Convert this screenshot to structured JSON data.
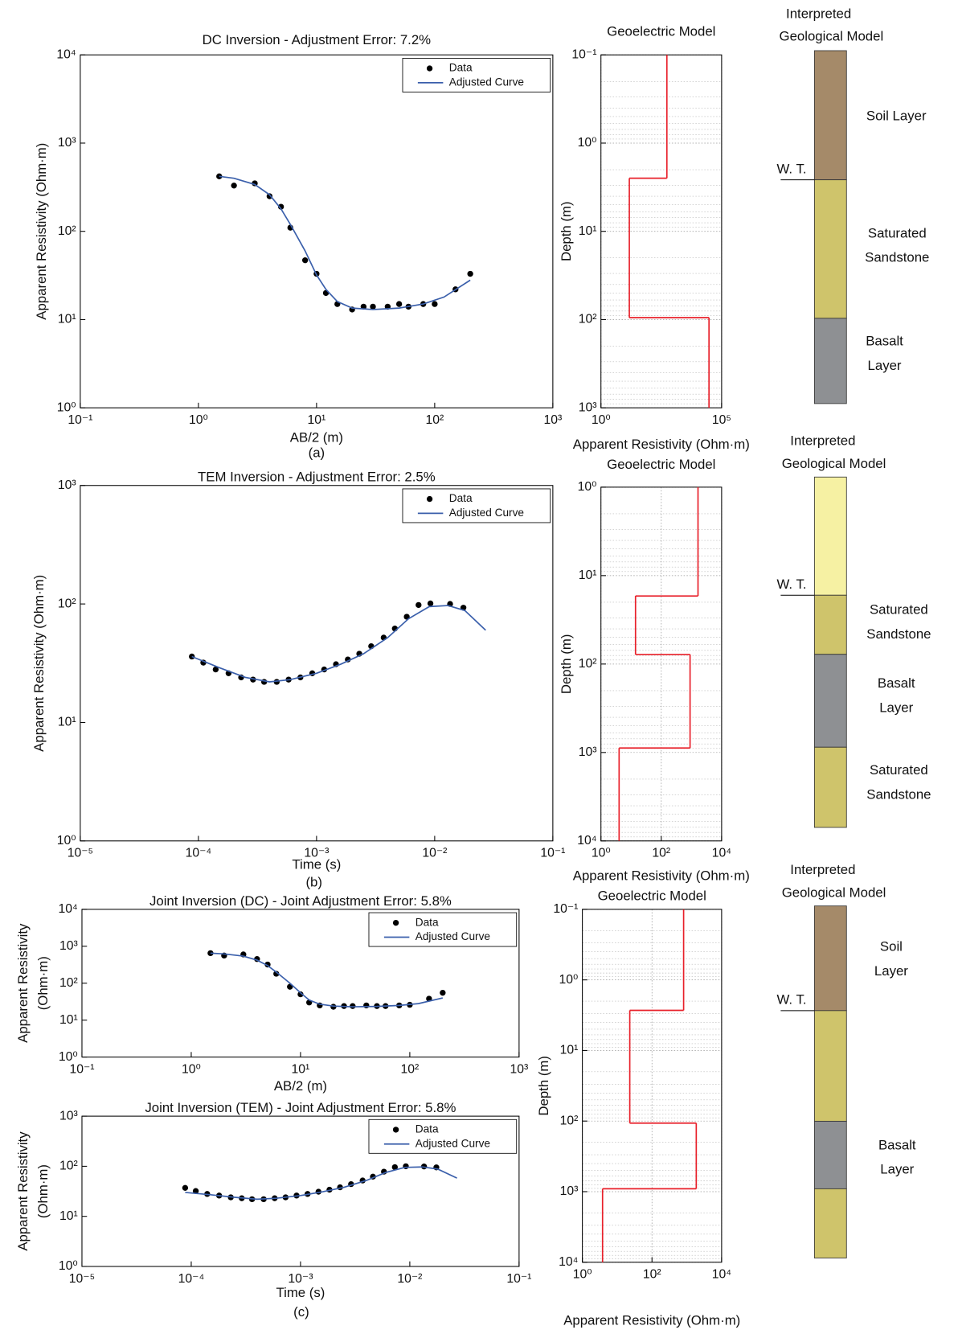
{
  "chart_data": [
    {
      "type": "line",
      "title": "DC Inversion - Adjustment Error: 7.2%",
      "xlabel": "AB/2 (m)",
      "ylabel": "Apparent Resistivity (Ohm·m)",
      "xlog": true,
      "ylog": true,
      "xlim": [
        0.1,
        1000
      ],
      "ylim": [
        1,
        10000
      ],
      "legend": "upper right",
      "xticks": [
        {
          "value": 0.1,
          "label": "10⁻¹"
        },
        {
          "value": 1,
          "label": "10⁰"
        },
        {
          "value": 10,
          "label": "10¹"
        },
        {
          "value": 100,
          "label": "10²"
        },
        {
          "value": 1000,
          "label": "10³"
        }
      ],
      "yticks": [
        {
          "value": 1,
          "label": "10⁰"
        },
        {
          "value": 10,
          "label": "10¹"
        },
        {
          "value": 100,
          "label": "10²"
        },
        {
          "value": 1000,
          "label": "10³"
        },
        {
          "value": 10000,
          "label": "10⁴"
        }
      ],
      "series": [
        {
          "name": "Data",
          "mode": "markers",
          "color": "#000000",
          "x": [
            1.5,
            2,
            3,
            4,
            5,
            6,
            8,
            10,
            12,
            15,
            20,
            25,
            30,
            40,
            50,
            60,
            80,
            100,
            150,
            200
          ],
          "values": [
            420,
            330,
            350,
            250,
            190,
            110,
            47,
            33,
            20,
            15,
            13,
            14,
            14,
            14,
            15,
            14,
            15,
            15,
            22,
            33
          ]
        },
        {
          "name": "Adjusted Curve",
          "mode": "line",
          "color": "#3a5fab",
          "x": [
            1.5,
            2,
            3,
            4,
            5,
            6,
            8,
            10,
            12,
            15,
            20,
            30,
            50,
            80,
            120,
            200
          ],
          "values": [
            420,
            400,
            340,
            260,
            180,
            120,
            60,
            32,
            22,
            16,
            13.5,
            13,
            13.5,
            15,
            18,
            28
          ]
        }
      ]
    },
    {
      "type": "step",
      "title": "Geoelectric Model",
      "xlabel": "Apparent Resistivity (Ohm·m)",
      "ylabel": "Depth (m)",
      "xlog": true,
      "ylog": true,
      "yinvert": true,
      "grid": true,
      "color": "#e8202a",
      "xlim": [
        1,
        100000
      ],
      "ylim": [
        0.1,
        1000
      ],
      "xticks": [
        {
          "value": 1,
          "label": "10⁰"
        },
        {
          "value": 100000,
          "label": "10⁵"
        }
      ],
      "yticks": [
        {
          "value": 0.1,
          "label": "10⁻¹"
        },
        {
          "value": 1,
          "label": "10⁰"
        },
        {
          "value": 10,
          "label": "10¹"
        },
        {
          "value": 100,
          "label": "10²"
        },
        {
          "value": 1000,
          "label": "10³"
        }
      ],
      "resistivity": [
        540,
        15,
        30000
      ],
      "depths": [
        2.5,
        95
      ]
    },
    {
      "type": "line",
      "title": "TEM Inversion - Adjustment Error: 2.5%",
      "xlabel": "Time (s)",
      "ylabel": "Apparent Resistivity (Ohm·m)",
      "xlog": true,
      "ylog": true,
      "xlim": [
        1e-05,
        0.1
      ],
      "ylim": [
        1,
        1000
      ],
      "legend": "upper right",
      "xticks": [
        {
          "value": 1e-05,
          "label": "10⁻⁵"
        },
        {
          "value": 0.0001,
          "label": "10⁻⁴"
        },
        {
          "value": 0.001,
          "label": "10⁻³"
        },
        {
          "value": 0.01,
          "label": "10⁻²"
        },
        {
          "value": 0.1,
          "label": "10⁻¹"
        }
      ],
      "yticks": [
        {
          "value": 1,
          "label": "10⁰"
        },
        {
          "value": 10,
          "label": "10¹"
        },
        {
          "value": 100,
          "label": "10²"
        },
        {
          "value": 1000,
          "label": "10³"
        }
      ],
      "series": [
        {
          "name": "Data",
          "mode": "markers",
          "color": "#000000",
          "x": [
            8.8e-05,
            0.00011,
            0.00014,
            0.00018,
            0.00023,
            0.00029,
            0.00036,
            0.00046,
            0.00058,
            0.00073,
            0.00092,
            0.00116,
            0.00146,
            0.00184,
            0.0023,
            0.0029,
            0.0037,
            0.0046,
            0.0058,
            0.0073,
            0.0092,
            0.0135,
            0.0175
          ],
          "values": [
            36,
            32,
            28,
            26,
            24,
            23,
            22,
            22,
            23,
            24,
            26,
            28,
            31,
            34,
            38,
            44,
            52,
            62,
            78,
            98,
            101,
            100,
            93
          ]
        },
        {
          "name": "Adjusted Curve",
          "mode": "line",
          "color": "#3a5fab",
          "x": [
            8.8e-05,
            0.00015,
            0.00025,
            0.0004,
            0.0006,
            0.001,
            0.0016,
            0.0025,
            0.004,
            0.006,
            0.009,
            0.013,
            0.018,
            0.027
          ],
          "values": [
            36,
            29,
            24,
            22,
            23,
            26,
            31,
            38,
            52,
            75,
            95,
            97,
            88,
            60
          ]
        }
      ]
    },
    {
      "type": "step",
      "title": "Geoelectric Model",
      "xlabel": "Apparent Resistivity (Ohm·m)",
      "ylabel": "Depth (m)",
      "xlog": true,
      "ylog": true,
      "yinvert": true,
      "grid": true,
      "color": "#e8202a",
      "xlim": [
        1,
        10000
      ],
      "ylim": [
        1,
        10000
      ],
      "xticks": [
        {
          "value": 1,
          "label": "10⁰"
        },
        {
          "value": 100,
          "label": "10²"
        },
        {
          "value": 10000,
          "label": "10⁴"
        }
      ],
      "yticks": [
        {
          "value": 1,
          "label": "10⁰"
        },
        {
          "value": 10,
          "label": "10¹"
        },
        {
          "value": 100,
          "label": "10²"
        },
        {
          "value": 1000,
          "label": "10³"
        },
        {
          "value": 10000,
          "label": "10⁴"
        }
      ],
      "resistivity": [
        1650,
        14,
        900,
        4
      ],
      "depths": [
        17,
        78,
        890
      ]
    },
    {
      "type": "line",
      "title": "Joint Inversion (DC) - Joint Adjustment Error: 5.8%",
      "xlabel": "AB/2 (m)",
      "ylabel_lines": [
        "Apparent Resistivity",
        "(Ohm·m)"
      ],
      "xlog": true,
      "ylog": true,
      "xlim": [
        0.1,
        1000
      ],
      "ylim": [
        1,
        10000
      ],
      "legend": "upper right",
      "xticks": [
        {
          "value": 0.1,
          "label": "10⁻¹"
        },
        {
          "value": 1,
          "label": "10⁰"
        },
        {
          "value": 10,
          "label": "10¹"
        },
        {
          "value": 100,
          "label": "10²"
        },
        {
          "value": 1000,
          "label": "10³"
        }
      ],
      "yticks": [
        {
          "value": 1,
          "label": "10⁰"
        },
        {
          "value": 10,
          "label": "10¹"
        },
        {
          "value": 100,
          "label": "10²"
        },
        {
          "value": 1000,
          "label": "10³"
        },
        {
          "value": 10000,
          "label": "10⁴"
        }
      ],
      "series": [
        {
          "name": "Data",
          "mode": "markers",
          "color": "#000000",
          "x": [
            1.5,
            2,
            3,
            4,
            5,
            6,
            8,
            10,
            12,
            15,
            20,
            25,
            30,
            40,
            50,
            60,
            80,
            100,
            150,
            200
          ],
          "values": [
            650,
            560,
            600,
            450,
            320,
            180,
            80,
            50,
            30,
            25,
            23,
            24,
            24,
            25,
            24,
            24,
            25,
            26,
            38,
            55
          ]
        },
        {
          "name": "Adjusted Curve",
          "mode": "line",
          "color": "#3a5fab",
          "x": [
            1.5,
            2,
            3,
            4,
            5,
            6,
            8,
            10,
            12,
            15,
            20,
            30,
            50,
            80,
            120,
            200
          ],
          "values": [
            650,
            620,
            540,
            420,
            300,
            200,
            100,
            55,
            35,
            27,
            24,
            23,
            23.5,
            25,
            28,
            40
          ]
        }
      ]
    },
    {
      "type": "line",
      "title": "Joint Inversion (TEM) - Joint Adjustment Error: 5.8%",
      "xlabel": "Time (s)",
      "ylabel_lines": [
        "Apparent Resistivity",
        "(Ohm·m)"
      ],
      "xlog": true,
      "ylog": true,
      "xlim": [
        1e-05,
        0.1
      ],
      "ylim": [
        1,
        1000
      ],
      "legend": "upper right",
      "xticks": [
        {
          "value": 1e-05,
          "label": "10⁻⁵"
        },
        {
          "value": 0.0001,
          "label": "10⁻⁴"
        },
        {
          "value": 0.001,
          "label": "10⁻³"
        },
        {
          "value": 0.01,
          "label": "10⁻²"
        },
        {
          "value": 0.1,
          "label": "10⁻¹"
        }
      ],
      "yticks": [
        {
          "value": 1,
          "label": "10⁰"
        },
        {
          "value": 10,
          "label": "10¹"
        },
        {
          "value": 100,
          "label": "10²"
        },
        {
          "value": 1000,
          "label": "10³"
        }
      ],
      "series": [
        {
          "name": "Data",
          "mode": "markers",
          "color": "#000000",
          "x": [
            8.8e-05,
            0.00011,
            0.00014,
            0.00018,
            0.00023,
            0.00029,
            0.00036,
            0.00046,
            0.00058,
            0.00073,
            0.00092,
            0.00116,
            0.00146,
            0.00184,
            0.0023,
            0.0029,
            0.0037,
            0.0046,
            0.0058,
            0.0073,
            0.0092,
            0.0135,
            0.0175
          ],
          "values": [
            37,
            32,
            28,
            26,
            24,
            23,
            22,
            22,
            23,
            24,
            26,
            28,
            31,
            34,
            38,
            44,
            52,
            62,
            78,
            96,
            100,
            99,
            95
          ]
        },
        {
          "name": "Adjusted Curve",
          "mode": "line",
          "color": "#3a5fab",
          "x": [
            8.8e-05,
            0.00015,
            0.00025,
            0.0004,
            0.0006,
            0.001,
            0.0016,
            0.0025,
            0.004,
            0.006,
            0.009,
            0.013,
            0.018,
            0.027
          ],
          "values": [
            30,
            27,
            24,
            22,
            23,
            26,
            31,
            38,
            52,
            75,
            95,
            97,
            88,
            58
          ]
        }
      ]
    },
    {
      "type": "step",
      "title": "Geoelectric Model",
      "xlabel": "Apparent Resistivity (Ohm·m)",
      "ylabel": "Depth (m)",
      "xlog": true,
      "ylog": true,
      "yinvert": true,
      "grid": true,
      "color": "#e8202a",
      "xlim": [
        1,
        10000
      ],
      "ylim": [
        0.1,
        10000
      ],
      "xticks": [
        {
          "value": 1,
          "label": "10⁰"
        },
        {
          "value": 100,
          "label": "10²"
        },
        {
          "value": 10000,
          "label": "10⁴"
        }
      ],
      "yticks": [
        {
          "value": 0.1,
          "label": "10⁻¹"
        },
        {
          "value": 1,
          "label": "10⁰"
        },
        {
          "value": 10,
          "label": "10¹"
        },
        {
          "value": 100,
          "label": "10²"
        },
        {
          "value": 1000,
          "label": "10³"
        },
        {
          "value": 10000,
          "label": "10⁴"
        }
      ],
      "resistivity": [
        810,
        23,
        1870,
        3.8
      ],
      "depths": [
        2.7,
        107,
        910
      ]
    }
  ],
  "geology": [
    {
      "title_lines": [
        "Interpreted",
        "Geological Model"
      ],
      "water_table": "W. T.",
      "layers": [
        {
          "color": "#a58a69",
          "label_lines": [
            "Soil Layer"
          ]
        },
        {
          "color": "#cfc46b",
          "label_lines": [
            "Saturated",
            "Sandstone"
          ]
        },
        {
          "color": "#8e9093",
          "label_lines": [
            "Basalt",
            "Layer"
          ]
        }
      ]
    },
    {
      "title_lines": [
        "Interpreted",
        "Geological Model"
      ],
      "water_table": "W. T.",
      "layers": [
        {
          "color": "#f6f1a3"
        },
        {
          "color": "#cfc46b",
          "label_lines": [
            "Saturated",
            "Sandstone"
          ]
        },
        {
          "color": "#8e9093",
          "label_lines": [
            "Basalt",
            "Layer"
          ]
        },
        {
          "color": "#cfc46b",
          "label_lines": [
            "Saturated",
            "Sandstone"
          ]
        }
      ]
    },
    {
      "title_lines": [
        "Interpreted",
        "Geological Model"
      ],
      "water_table": "W. T.",
      "layers": [
        {
          "color": "#a58a69",
          "label_lines": [
            "Soil",
            "Layer"
          ]
        },
        {
          "color": "#cfc46b"
        },
        {
          "color": "#8e9093",
          "label_lines": [
            "Basalt",
            "Layer"
          ]
        },
        {
          "color": "#cfc46b"
        }
      ]
    }
  ],
  "panel_labels": [
    "(a)",
    "(b)",
    "(c)"
  ]
}
